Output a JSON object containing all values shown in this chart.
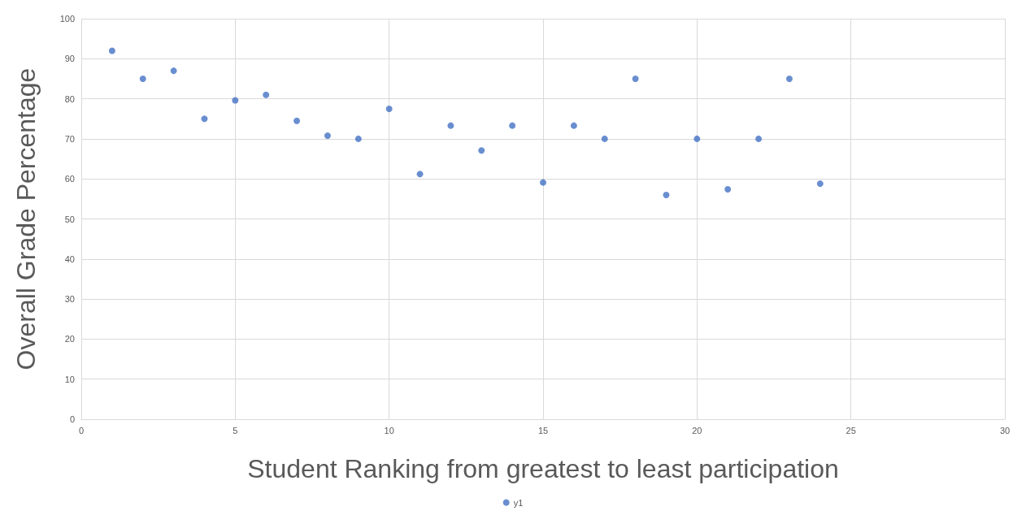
{
  "chart_data": {
    "type": "scatter",
    "xlabel": "Student Ranking from greatest to least participation",
    "ylabel": "Overall Grade Percentage",
    "x": [
      1,
      2,
      3,
      4,
      5,
      6,
      7,
      8,
      9,
      10,
      11,
      12,
      13,
      14,
      15,
      16,
      17,
      18,
      19,
      20,
      21,
      22,
      23,
      24
    ],
    "series": [
      {
        "name": "y1",
        "color": "#4472c4",
        "values": [
          92,
          85,
          87,
          75,
          79.6,
          81,
          74.5,
          70.8,
          70,
          77.5,
          61.2,
          73.3,
          67.1,
          73.3,
          59.1,
          73.3,
          70,
          85,
          56,
          70,
          57.4,
          70,
          85,
          58.8
        ]
      }
    ],
    "xlim": [
      0,
      30
    ],
    "xticks": [
      0,
      5,
      10,
      15,
      20,
      25,
      30
    ],
    "ylim": [
      0,
      100
    ],
    "yticks": [
      0,
      10,
      20,
      30,
      40,
      50,
      60,
      70,
      80,
      90,
      100
    ],
    "grid": true,
    "legend": "bottom",
    "marker": "circle"
  }
}
